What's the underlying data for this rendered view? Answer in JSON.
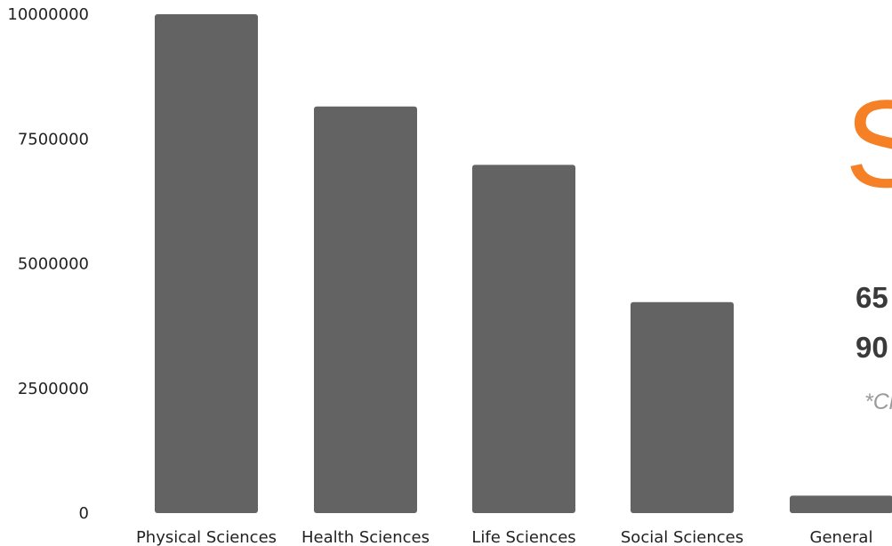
{
  "chart_data": {
    "type": "bar",
    "categories": [
      "Physical Sciences",
      "Health Sciences",
      "Life Sciences",
      "Social Sciences",
      "General"
    ],
    "values": [
      10000000,
      8150000,
      6980000,
      4230000,
      350000
    ],
    "y_ticks": [
      "10000000",
      "7500000",
      "5000000",
      "2500000",
      "0"
    ],
    "y_tick_values": [
      10000000,
      7500000,
      5000000,
      2500000,
      0
    ],
    "ylim": [
      0,
      10000000
    ],
    "grid": false,
    "title": "",
    "xlabel": "",
    "ylabel": "",
    "bar_color": "#636363"
  },
  "overlay": {
    "big_letter": "S",
    "line1": "65",
    "line2": "90",
    "note": "*Cl",
    "accent_color": "#f58025"
  }
}
